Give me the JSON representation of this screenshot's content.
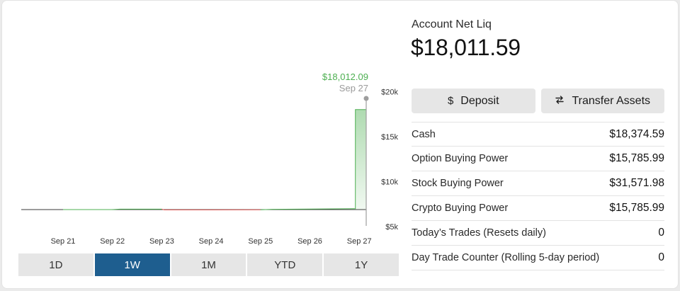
{
  "range_tabs": [
    {
      "label": "1D",
      "active": false
    },
    {
      "label": "1W",
      "active": true
    },
    {
      "label": "1M",
      "active": false
    },
    {
      "label": "YTD",
      "active": false
    },
    {
      "label": "1Y",
      "active": false
    }
  ],
  "account": {
    "label": "Account Net Liq",
    "value": "$18,011.59"
  },
  "actions": {
    "deposit_label": "Deposit",
    "transfer_label": "Transfer Assets",
    "deposit_icon": "dollar-icon",
    "transfer_icon": "swap-arrows-icon"
  },
  "stats": [
    {
      "label": "Cash",
      "value": "$18,374.59"
    },
    {
      "label": "Option Buying Power",
      "value": "$15,785.99"
    },
    {
      "label": "Stock Buying Power",
      "value": "$31,571.98"
    },
    {
      "label": "Crypto Buying Power",
      "value": "$15,785.99"
    },
    {
      "label": "Today’s Trades (Resets daily)",
      "value": "0"
    },
    {
      "label": "Day Trade Counter (Rolling 5-day period)",
      "value": "0"
    }
  ],
  "colors": {
    "accent": "#1e5e8f",
    "up": "#4caf50",
    "down": "#d9534f"
  },
  "chart_data": {
    "type": "area",
    "x": [
      "Sep 21",
      "Sep 22",
      "Sep 23",
      "Sep 24",
      "Sep 25",
      "Sep 26",
      "Sep 27"
    ],
    "points": [
      {
        "x": 0.0,
        "y": 5000
      },
      {
        "x": 1.0,
        "y": 5000
      },
      {
        "x": 1.15,
        "y": 5060
      },
      {
        "x": 2.0,
        "y": 5060
      },
      {
        "x": 2.05,
        "y": 4960
      },
      {
        "x": 3.0,
        "y": 4960
      },
      {
        "x": 4.0,
        "y": 4980
      },
      {
        "x": 4.25,
        "y": 5040
      },
      {
        "x": 5.0,
        "y": 5070
      },
      {
        "x": 5.9,
        "y": 5120
      },
      {
        "x": 5.95,
        "y": 18012.09
      }
    ],
    "ylim": [
      5000,
      20000
    ],
    "yticks": [
      "$5k",
      "$10k",
      "$15k",
      "$20k"
    ],
    "ytick_values": [
      5000,
      10000,
      15000,
      20000
    ],
    "baseline": 5000,
    "hover": {
      "value": "$18,012.09",
      "date": "Sep 27"
    }
  }
}
